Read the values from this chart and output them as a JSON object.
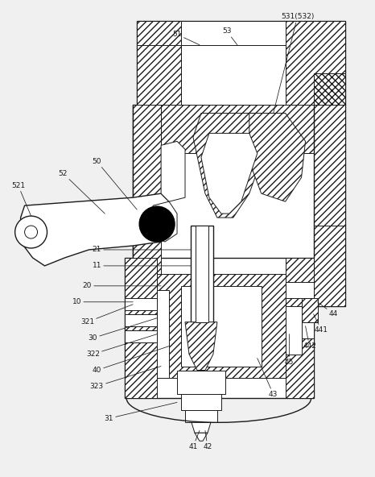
{
  "bg_color": "#f0f0f0",
  "line_color": "#1a1a1a",
  "lw": 0.7,
  "lw2": 1.0,
  "fs": 6.5
}
